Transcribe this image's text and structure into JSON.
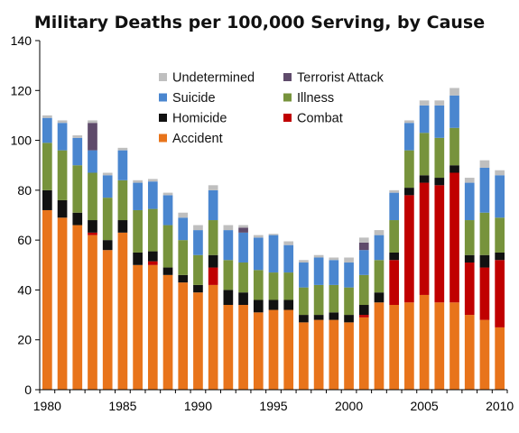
{
  "chart_data": {
    "type": "bar",
    "stacked": true,
    "title": "Military Deaths per 100,000 Serving, by Cause",
    "xlabel": "",
    "ylabel": "",
    "ylim": [
      0,
      140
    ],
    "yticks": [
      "0",
      "20",
      "40",
      "60",
      "80",
      "100",
      "120",
      "140"
    ],
    "xticks": [
      "1980",
      "1985",
      "1990",
      "1995",
      "2000",
      "2005",
      "2010"
    ],
    "grid": false,
    "legend_position": "top-center",
    "categories": [
      "1980",
      "1981",
      "1982",
      "1983",
      "1984",
      "1985",
      "1986",
      "1987",
      "1988",
      "1989",
      "1990",
      "1991",
      "1992",
      "1993",
      "1994",
      "1995",
      "1996",
      "1997",
      "1998",
      "1999",
      "2000",
      "2001",
      "2002",
      "2003",
      "2004",
      "2005",
      "2006",
      "2007",
      "2008",
      "2009",
      "2010"
    ],
    "series": [
      {
        "name": "Accident",
        "color": "#e8741b",
        "values": [
          72,
          69,
          66,
          62,
          56,
          63,
          50,
          50,
          46,
          43,
          39,
          42,
          34,
          34,
          31,
          32,
          32,
          27,
          28,
          28,
          27,
          29,
          35,
          34,
          35,
          38,
          35,
          35,
          30,
          28,
          25
        ]
      },
      {
        "name": "Combat",
        "color": "#c00000",
        "values": [
          0,
          0,
          0,
          1,
          0,
          0,
          0,
          1.5,
          0,
          0,
          0,
          7,
          0,
          0,
          0,
          0,
          0,
          0,
          0,
          0,
          0,
          1,
          0,
          18,
          43,
          45,
          47,
          52,
          21,
          21,
          27
        ]
      },
      {
        "name": "Homicide",
        "color": "#111111",
        "values": [
          8,
          7,
          5,
          5,
          4,
          5,
          5,
          4,
          3,
          3,
          3,
          5,
          6,
          5,
          5,
          4,
          4,
          3,
          2,
          3,
          3,
          4,
          4,
          3,
          3,
          3,
          3,
          3,
          3,
          5,
          3
        ]
      },
      {
        "name": "Illness",
        "color": "#77933c",
        "values": [
          19,
          20,
          19,
          19,
          17,
          16,
          17,
          17,
          17,
          14,
          12,
          14,
          12,
          12,
          12,
          11,
          11,
          11,
          12,
          11,
          11,
          12,
          13,
          13,
          15,
          17,
          16,
          15,
          14,
          17,
          14
        ]
      },
      {
        "name": "Suicide",
        "color": "#4a86cf",
        "values": [
          10,
          11,
          11,
          9,
          9,
          12,
          11,
          11,
          12,
          9,
          10,
          12,
          12,
          12,
          13,
          15,
          11,
          10,
          11,
          10,
          10,
          10,
          10,
          11,
          11,
          11,
          13,
          13,
          15,
          18,
          17
        ]
      },
      {
        "name": "Terrorist Attack",
        "color": "#5f4b6b",
        "values": [
          0,
          0,
          0,
          11,
          0,
          0,
          0,
          0,
          0,
          0,
          0,
          0,
          0,
          2,
          0,
          0,
          0,
          0,
          0,
          0,
          0,
          3,
          0,
          0,
          0,
          0,
          0,
          0,
          0,
          0,
          0
        ]
      },
      {
        "name": "Undetermined",
        "color": "#bfbfbf",
        "values": [
          1,
          1,
          1,
          1,
          1,
          1,
          1,
          1,
          1,
          2,
          2,
          2,
          2,
          1,
          1,
          0.5,
          1.5,
          1,
          1,
          1,
          2,
          2,
          2,
          1,
          1,
          2,
          2,
          3,
          2,
          3,
          2
        ]
      }
    ],
    "legend_order": [
      "Undetermined",
      "Terrorist Attack",
      "Suicide",
      "Illness",
      "Homicide",
      "Combat",
      "Accident"
    ]
  }
}
